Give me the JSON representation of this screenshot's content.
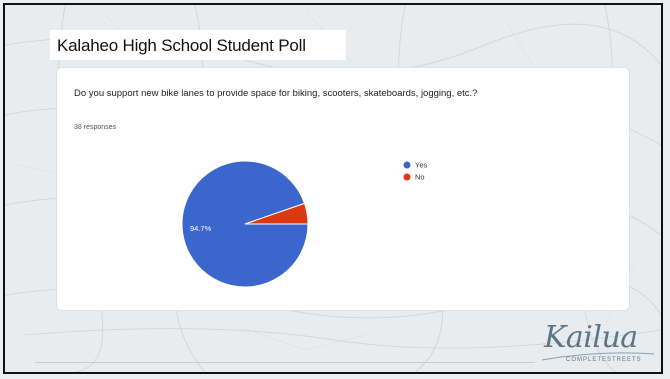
{
  "slide": {
    "title": "Kalaheo High School Student Poll"
  },
  "card": {
    "question": "Do you support new bike lanes to provide space for biking, scooters, skateboards, jogging, etc.?",
    "responses": "38 responses"
  },
  "chart_data": {
    "type": "pie",
    "categories": [
      "Yes",
      "No"
    ],
    "values": [
      94.7,
      5.3
    ],
    "slice_labels": [
      "94.7%",
      ""
    ],
    "colors": [
      "#3b66cc",
      "#dc3912"
    ],
    "legend_position": "right"
  },
  "logo": {
    "word": "Kailua",
    "sub": "COMPLETESTREETS"
  }
}
